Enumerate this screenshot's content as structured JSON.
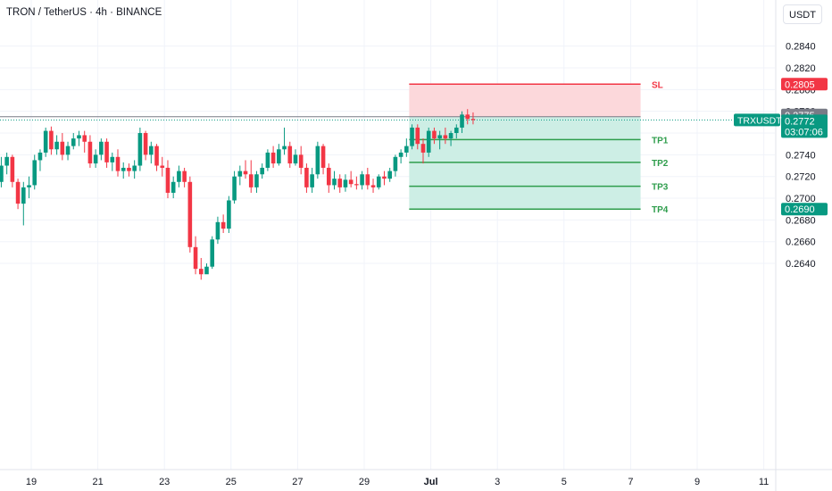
{
  "header": {
    "title": "TRON / TetherUS · 4h · BINANCE",
    "currency_button": "USDT"
  },
  "colors": {
    "up": "#089981",
    "down": "#f23645",
    "sl_zone": "#fcd8db",
    "tp_zone": "#cdeee5",
    "tp_line": "#2e9d4c",
    "sl_line": "#f23645",
    "price_tag": "#089981",
    "entry_tag": "#787b86",
    "grid": "#f0f3fa"
  },
  "chart_data": {
    "type": "candlestick",
    "symbol": "TRXUSDT",
    "ylim": [
      0.2633,
      0.285
    ],
    "y_ticks": [
      "0.2640",
      "0.2660",
      "0.2680",
      "0.2700",
      "0.2720",
      "0.2740",
      "0.2760",
      "0.2780",
      "0.2800",
      "0.2820",
      "0.2840"
    ],
    "x_ticks": [
      {
        "label": "19",
        "day": 19
      },
      {
        "label": "21",
        "day": 21
      },
      {
        "label": "23",
        "day": 23
      },
      {
        "label": "25",
        "day": 25
      },
      {
        "label": "27",
        "day": 27
      },
      {
        "label": "29",
        "day": 29
      },
      {
        "label": "Jul",
        "day": 31
      },
      {
        "label": "3",
        "day": 33
      },
      {
        "label": "5",
        "day": 35
      },
      {
        "label": "7",
        "day": 37
      },
      {
        "label": "9",
        "day": 39
      },
      {
        "label": "11",
        "day": 41
      }
    ],
    "first_candle_day": 18.1,
    "candle_step_days": 0.1667,
    "ohlc": [
      [
        0.2715,
        0.2738,
        0.271,
        0.273
      ],
      [
        0.273,
        0.2742,
        0.2722,
        0.2738
      ],
      [
        0.2738,
        0.274,
        0.271,
        0.2715
      ],
      [
        0.2715,
        0.2718,
        0.269,
        0.2695
      ],
      [
        0.2695,
        0.2715,
        0.2675,
        0.271
      ],
      [
        0.271,
        0.272,
        0.27,
        0.2712
      ],
      [
        0.2712,
        0.274,
        0.2708,
        0.2735
      ],
      [
        0.2735,
        0.2745,
        0.2725,
        0.2742
      ],
      [
        0.2742,
        0.2765,
        0.2738,
        0.2762
      ],
      [
        0.2762,
        0.2766,
        0.274,
        0.2745
      ],
      [
        0.2745,
        0.2758,
        0.274,
        0.2752
      ],
      [
        0.2752,
        0.276,
        0.2735,
        0.274
      ],
      [
        0.274,
        0.2752,
        0.2735,
        0.2748
      ],
      [
        0.2748,
        0.276,
        0.2745,
        0.2755
      ],
      [
        0.2755,
        0.2762,
        0.2748,
        0.2758
      ],
      [
        0.2758,
        0.2762,
        0.2742,
        0.2752
      ],
      [
        0.2752,
        0.2758,
        0.2728,
        0.2732
      ],
      [
        0.2732,
        0.2745,
        0.2728,
        0.274
      ],
      [
        0.274,
        0.2755,
        0.2735,
        0.2752
      ],
      [
        0.2752,
        0.2755,
        0.2728,
        0.2733
      ],
      [
        0.2733,
        0.2742,
        0.2725,
        0.2738
      ],
      [
        0.2738,
        0.2745,
        0.272,
        0.2725
      ],
      [
        0.2725,
        0.2733,
        0.2718,
        0.2728
      ],
      [
        0.2728,
        0.2732,
        0.272,
        0.2725
      ],
      [
        0.2725,
        0.2735,
        0.2718,
        0.273
      ],
      [
        0.273,
        0.2765,
        0.2725,
        0.276
      ],
      [
        0.276,
        0.2762,
        0.2735,
        0.274
      ],
      [
        0.274,
        0.2752,
        0.2732,
        0.2748
      ],
      [
        0.2748,
        0.275,
        0.2725,
        0.273
      ],
      [
        0.273,
        0.2738,
        0.272,
        0.2728
      ],
      [
        0.2728,
        0.2735,
        0.27,
        0.2705
      ],
      [
        0.2705,
        0.272,
        0.27,
        0.2715
      ],
      [
        0.2715,
        0.273,
        0.271,
        0.2725
      ],
      [
        0.2725,
        0.2728,
        0.271,
        0.2715
      ],
      [
        0.2715,
        0.272,
        0.265,
        0.2655
      ],
      [
        0.2655,
        0.2665,
        0.263,
        0.2635
      ],
      [
        0.2635,
        0.2645,
        0.2625,
        0.263
      ],
      [
        0.263,
        0.264,
        0.2632,
        0.2637
      ],
      [
        0.2637,
        0.2665,
        0.2635,
        0.2662
      ],
      [
        0.2662,
        0.2683,
        0.2658,
        0.2678
      ],
      [
        0.2678,
        0.2685,
        0.2668,
        0.2672
      ],
      [
        0.2672,
        0.2702,
        0.2668,
        0.2698
      ],
      [
        0.2698,
        0.2725,
        0.2695,
        0.272
      ],
      [
        0.272,
        0.273,
        0.2712,
        0.2725
      ],
      [
        0.2725,
        0.2735,
        0.2718,
        0.2722
      ],
      [
        0.2722,
        0.2735,
        0.2705,
        0.271
      ],
      [
        0.271,
        0.2725,
        0.2705,
        0.2722
      ],
      [
        0.2722,
        0.2732,
        0.2718,
        0.2728
      ],
      [
        0.2728,
        0.2745,
        0.2725,
        0.2742
      ],
      [
        0.2742,
        0.2748,
        0.2728,
        0.2732
      ],
      [
        0.2732,
        0.275,
        0.273,
        0.2745
      ],
      [
        0.2745,
        0.2765,
        0.274,
        0.2748
      ],
      [
        0.2748,
        0.2752,
        0.2728,
        0.2732
      ],
      [
        0.2732,
        0.2745,
        0.273,
        0.274
      ],
      [
        0.274,
        0.2748,
        0.2722,
        0.2728
      ],
      [
        0.2728,
        0.2732,
        0.2705,
        0.271
      ],
      [
        0.271,
        0.2728,
        0.2705,
        0.2722
      ],
      [
        0.2722,
        0.2752,
        0.2718,
        0.2748
      ],
      [
        0.2748,
        0.275,
        0.2722,
        0.2728
      ],
      [
        0.2728,
        0.2732,
        0.2705,
        0.2712
      ],
      [
        0.2712,
        0.2725,
        0.2708,
        0.2718
      ],
      [
        0.2718,
        0.2722,
        0.2705,
        0.271
      ],
      [
        0.271,
        0.2722,
        0.2706,
        0.2717
      ],
      [
        0.2717,
        0.2725,
        0.271,
        0.2713
      ],
      [
        0.2713,
        0.272,
        0.2708,
        0.2712
      ],
      [
        0.2712,
        0.2725,
        0.2708,
        0.2722
      ],
      [
        0.2722,
        0.2728,
        0.2708,
        0.2712
      ],
      [
        0.2712,
        0.2718,
        0.2705,
        0.271
      ],
      [
        0.271,
        0.2722,
        0.2708,
        0.272
      ],
      [
        0.272,
        0.2725,
        0.2712,
        0.2718
      ],
      [
        0.2718,
        0.2728,
        0.2715,
        0.2725
      ],
      [
        0.2725,
        0.274,
        0.272,
        0.2738
      ],
      [
        0.2738,
        0.2745,
        0.2732,
        0.2742
      ],
      [
        0.2742,
        0.2755,
        0.2738,
        0.2748
      ],
      [
        0.2748,
        0.2768,
        0.2745,
        0.2765
      ],
      [
        0.2765,
        0.2768,
        0.2745,
        0.275
      ],
      [
        0.275,
        0.2755,
        0.2732,
        0.2742
      ],
      [
        0.2742,
        0.2765,
        0.2738,
        0.2762
      ],
      [
        0.2762,
        0.2765,
        0.275,
        0.2755
      ],
      [
        0.2755,
        0.2762,
        0.2745,
        0.2758
      ],
      [
        0.2758,
        0.2765,
        0.275,
        0.2755
      ],
      [
        0.2755,
        0.2762,
        0.2748,
        0.276
      ],
      [
        0.276,
        0.2768,
        0.2755,
        0.2765
      ],
      [
        0.2765,
        0.278,
        0.276,
        0.2777
      ],
      [
        0.2777,
        0.2782,
        0.2768,
        0.2773
      ],
      [
        0.2773,
        0.2779,
        0.2768,
        0.2772
      ]
    ],
    "position": {
      "entry": 0.2775,
      "stop_loss": {
        "label": "SL",
        "price": 0.2805,
        "tag": "0.2805"
      },
      "targets": [
        {
          "label": "TP1",
          "price": 0.2754
        },
        {
          "label": "TP2",
          "price": 0.2733
        },
        {
          "label": "TP3",
          "price": 0.2711
        },
        {
          "label": "TP4",
          "price": 0.269,
          "tag": "0.2690"
        }
      ],
      "start_day": 30.35,
      "end_day": 37.3
    },
    "price_tags": {
      "entry_tag": "0.2775",
      "symbol_tag": "TRXUSDT",
      "last_price": "0.2772",
      "countdown": "03:07:06"
    }
  }
}
